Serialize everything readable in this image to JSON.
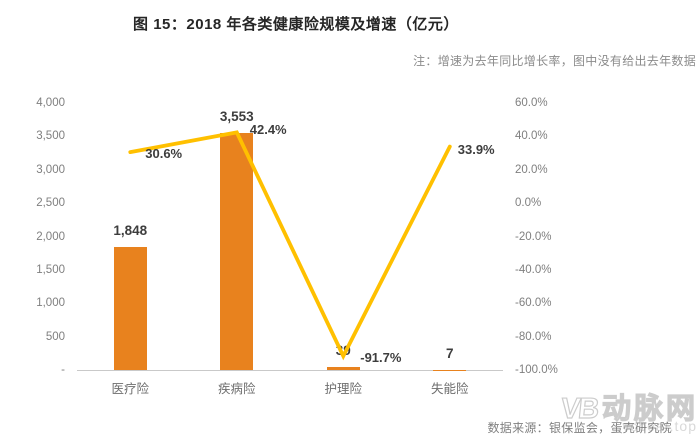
{
  "header": {
    "title": "图 15：2018 年各类健康险规模及增速（亿元）",
    "note": "注：增速为去年同比增长率，图中没有给出去年数据"
  },
  "footer": {
    "source": "数据来源：银保监会，蛋壳研究院"
  },
  "watermark": {
    "logo": "VB",
    "name": "动脉网",
    "url": "vcbeat.top"
  },
  "chart_data": {
    "type": "bar",
    "subtype": "bar-line combo, dual axis",
    "title": "图 15：2018 年各类健康险规模及增速（亿元）",
    "categories": [
      "医疗险",
      "疾病险",
      "护理险",
      "失能险"
    ],
    "series": [
      {
        "name": "规模（亿元）",
        "type": "bar",
        "axis": "left",
        "values": [
          1848,
          3553,
          39,
          7
        ],
        "labels": [
          "1,848",
          "3,553",
          "39",
          "7"
        ],
        "color": "#e8821e"
      },
      {
        "name": "增速",
        "type": "line",
        "axis": "right",
        "values": [
          30.6,
          42.4,
          -91.7,
          33.9
        ],
        "labels": [
          "30.6%",
          "42.4%",
          "-91.7%",
          "33.9%"
        ],
        "color": "#ffc000"
      }
    ],
    "left_axis": {
      "min": 0,
      "max": 4000,
      "ticks": [
        "4,000",
        "3,500",
        "3,000",
        "2,500",
        "2,000",
        "1,500",
        "1,000",
        "500",
        "-"
      ]
    },
    "right_axis": {
      "min": -100,
      "max": 60,
      "ticks": [
        "60.0%",
        "40.0%",
        "20.0%",
        "0.0%",
        "-20.0%",
        "-40.0%",
        "-60.0%",
        "-80.0%",
        "-100.0%"
      ]
    },
    "grid": false,
    "legend": "none"
  }
}
